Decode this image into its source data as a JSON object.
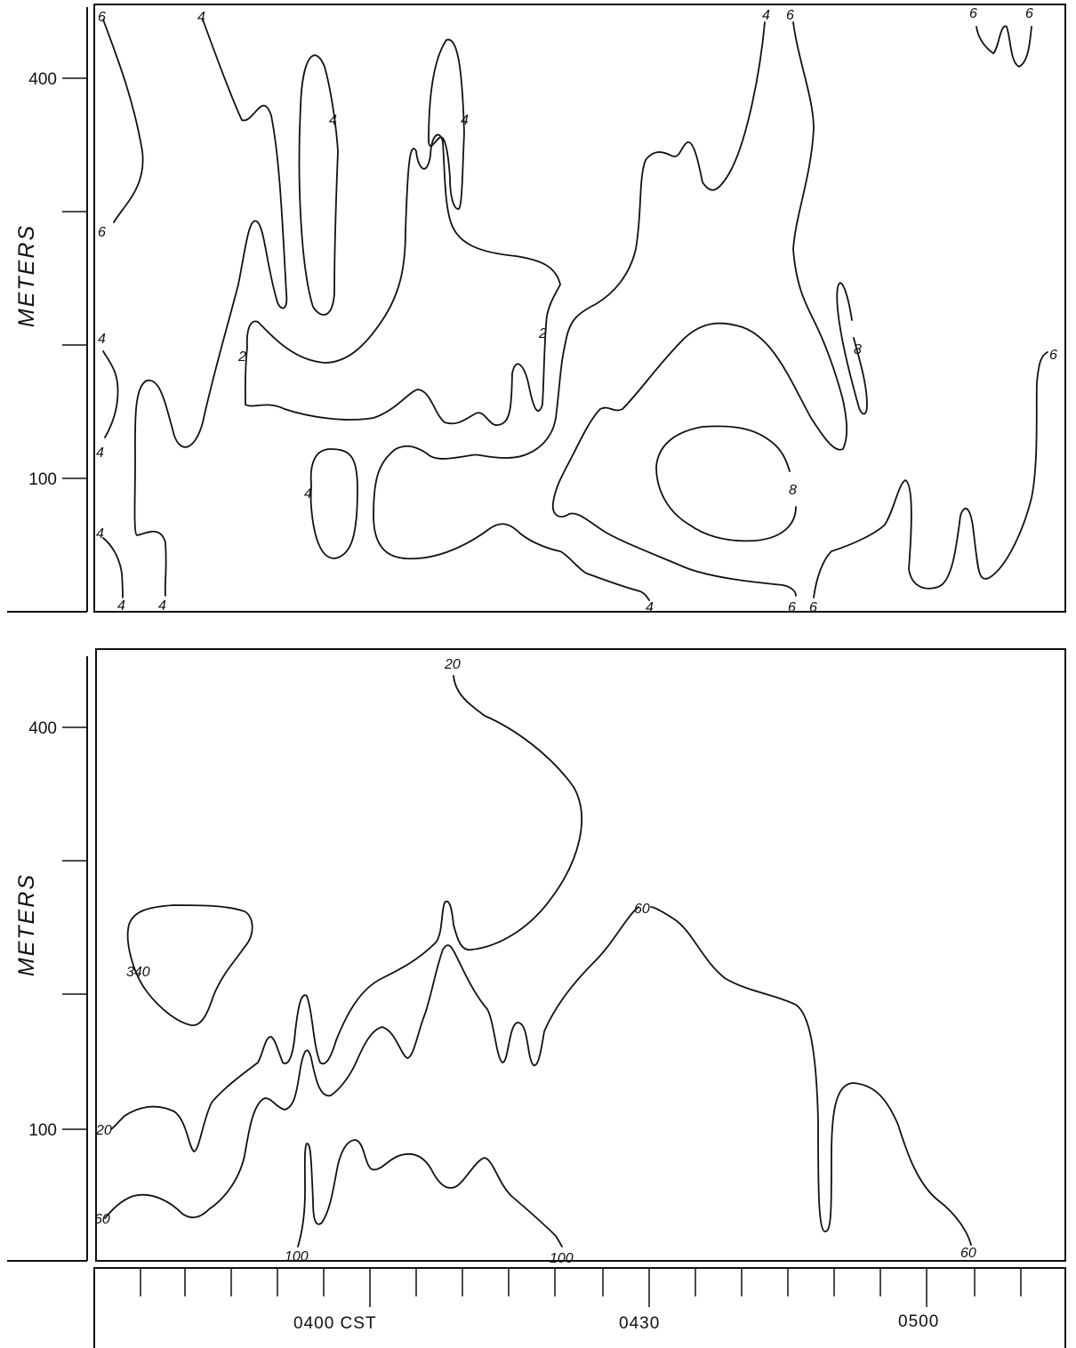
{
  "chart_data": [
    {
      "type": "contour",
      "ylabel": "METERS",
      "y_tick_labels": [
        "400",
        "100"
      ],
      "y_ticks": [
        400,
        300,
        200,
        100
      ],
      "ylim": [
        20,
        475
      ],
      "contour_labels": [
        "6",
        "4",
        "4",
        "4",
        "4",
        "6",
        "6",
        "6",
        "4",
        "4",
        "2",
        "2",
        "4",
        "4",
        "4",
        "4",
        "8",
        "6",
        "8",
        "4",
        "6",
        "6"
      ],
      "contours": [
        {
          "label": "6",
          "points": [
            [
              0,
              460
            ],
            [
              0.02,
              430
            ],
            [
              0.05,
              375
            ],
            [
              0.04,
              335
            ],
            [
              0.01,
              300
            ]
          ]
        },
        {
          "label": "4",
          "points": [
            [
              0.12,
              460
            ],
            [
              0.15,
              405
            ],
            [
              0.16,
              385
            ],
            [
              0.18,
              390
            ],
            [
              0.2,
              370
            ],
            [
              0.21,
              250
            ],
            [
              0.2,
              248
            ]
          ]
        },
        {
          "label": "4",
          "points": [
            [
              0.22,
              255
            ],
            [
              0.23,
              400
            ],
            [
              0.25,
              430
            ],
            [
              0.27,
              375
            ],
            [
              0.28,
              300
            ],
            [
              0.27,
              248
            ],
            [
              0.24,
              260
            ],
            [
              0.22,
              255
            ]
          ]
        },
        {
          "label": "4",
          "points": [
            [
              0.36,
              335
            ],
            [
              0.37,
              385
            ],
            [
              0.4,
              410
            ],
            [
              0.42,
              370
            ],
            [
              0.39,
              290
            ],
            [
              0.38,
              305
            ],
            [
              0.36,
              335
            ]
          ]
        },
        {
          "label": "2",
          "points": [
            [
              0.16,
              205
            ],
            [
              0.17,
              220
            ],
            [
              0.2,
              195
            ],
            [
              0.26,
              190
            ],
            [
              0.35,
              200
            ],
            [
              0.48,
              187
            ],
            [
              0.5,
              157
            ],
            [
              0.48,
              150
            ],
            [
              0.45,
              165
            ],
            [
              0.44,
              153
            ],
            [
              0.42,
              155
            ],
            [
              0.37,
              140
            ],
            [
              0.3,
              148
            ],
            [
              0.24,
              137
            ],
            [
              0.16,
              150
            ],
            [
              0.16,
              205
            ]
          ]
        },
        {
          "label": "8",
          "points": [
            [
              0.58,
              130
            ],
            [
              0.62,
              145
            ],
            [
              0.67,
              140
            ],
            [
              0.7,
              115
            ],
            [
              0.68,
              90
            ],
            [
              0.64,
              80
            ],
            [
              0.6,
              90
            ],
            [
              0.58,
              110
            ],
            [
              0.58,
              130
            ]
          ]
        },
        {
          "label": "6",
          "points": [
            [
              0.98,
              195
            ],
            [
              0.98,
              150
            ],
            [
              0.97,
              90
            ],
            [
              0.94,
              65
            ],
            [
              0.91,
              90
            ],
            [
              0.89,
              64
            ],
            [
              0.86,
              85
            ],
            [
              0.84,
              55
            ],
            [
              0.8,
              35
            ]
          ]
        }
      ]
    },
    {
      "type": "contour",
      "ylabel": "METERS",
      "y_tick_labels": [
        "400",
        "100"
      ],
      "y_ticks": [
        400,
        300,
        200,
        100
      ],
      "ylim": [
        20,
        475
      ],
      "x_tick_labels": [
        "0400 CST",
        "0430",
        "0500"
      ],
      "contour_labels": [
        "20",
        "60",
        "340",
        "20",
        "60",
        "100",
        "100",
        "60"
      ],
      "contours": [
        {
          "label": "20",
          "points": [
            [
              0.38,
              460
            ],
            [
              0.39,
              440
            ],
            [
              0.44,
              400
            ],
            [
              0.5,
              340
            ],
            [
              0.45,
              263
            ],
            [
              0.4,
              235
            ],
            [
              0.37,
              260
            ],
            [
              0.33,
              235
            ],
            [
              0.29,
              210
            ],
            [
              0.26,
              180
            ],
            [
              0.24,
              210
            ],
            [
              0.22,
              180
            ],
            [
              0.2,
              160
            ],
            [
              0.19,
              205
            ],
            [
              0.16,
              160
            ],
            [
              0.11,
              120
            ],
            [
              0.07,
              60
            ],
            [
              0.03,
              108
            ],
            [
              0,
              95
            ]
          ]
        },
        {
          "label": "60",
          "points": [
            [
              0.57,
              265
            ],
            [
              0.62,
              245
            ],
            [
              0.67,
              200
            ],
            [
              0.73,
              180
            ],
            [
              0.76,
              140
            ],
            [
              0.77,
              40
            ],
            [
              0.8,
              110
            ],
            [
              0.85,
              90
            ],
            [
              0.93,
              65
            ],
            [
              0.96,
              40
            ]
          ]
        },
        {
          "label": "340",
          "points": [
            [
              0.03,
              250
            ],
            [
              0.05,
              265
            ],
            [
              0.15,
              255
            ],
            [
              0.17,
              230
            ],
            [
              0.1,
              175
            ],
            [
              0.03,
              250
            ]
          ]
        },
        {
          "label": "100",
          "points": [
            [
              0.22,
              40
            ],
            [
              0.23,
              88
            ],
            [
              0.24,
              78
            ],
            [
              0.27,
              50
            ],
            [
              0.32,
              68
            ],
            [
              0.37,
              65
            ],
            [
              0.42,
              50
            ],
            [
              0.48,
              40
            ]
          ]
        }
      ]
    }
  ]
}
